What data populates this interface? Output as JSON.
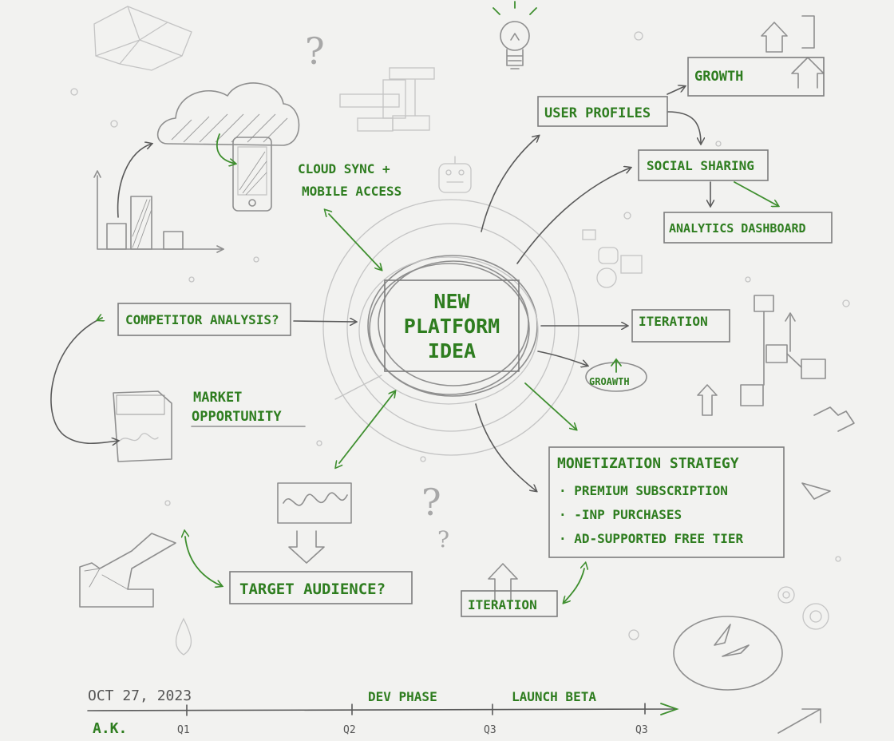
{
  "center": {
    "line1": "NEW",
    "line2": "PLATFORM",
    "line3": "IDEA"
  },
  "nodes": {
    "growth_top": "GROWTH",
    "user_profiles": "USER PROFILES",
    "social_sharing": "SOCIAL SHARING",
    "analytics_dashboard": "ANALYTICS DASHBOARD",
    "cloud_sync_line1": "CLOUD SYNC +",
    "cloud_sync_line2": "MOBILE ACCESS",
    "competitor_analysis": "COMPETITOR ANALYSIS?",
    "market_line1": "MARKET",
    "market_line2": "OPPORTUNITY",
    "iteration_right": "ITERATION",
    "growth_small": "GROAWTH",
    "target_audience": "TARGET AUDIENCE?",
    "iteration_bottom": "ITERATION"
  },
  "monetization": {
    "title": "MONETIZATION STRATEGY",
    "items": [
      "· PREMIUM SUBSCRIPTION",
      "· -INP PURCHASES",
      "· AD-SUPPORTED FREE TIER"
    ]
  },
  "timeline": {
    "date": "OCT 27, 2023",
    "author": "A.K.",
    "dev_phase": "DEV PHASE",
    "launch_beta": "LAUNCH BETA",
    "ticks": [
      "Q1",
      "Q2",
      "Q3",
      "Q3"
    ]
  },
  "colors": {
    "accent_green": "#2e7d1f",
    "pencil_gray": "#8f8f8f",
    "paper": "#f2f2f0"
  }
}
